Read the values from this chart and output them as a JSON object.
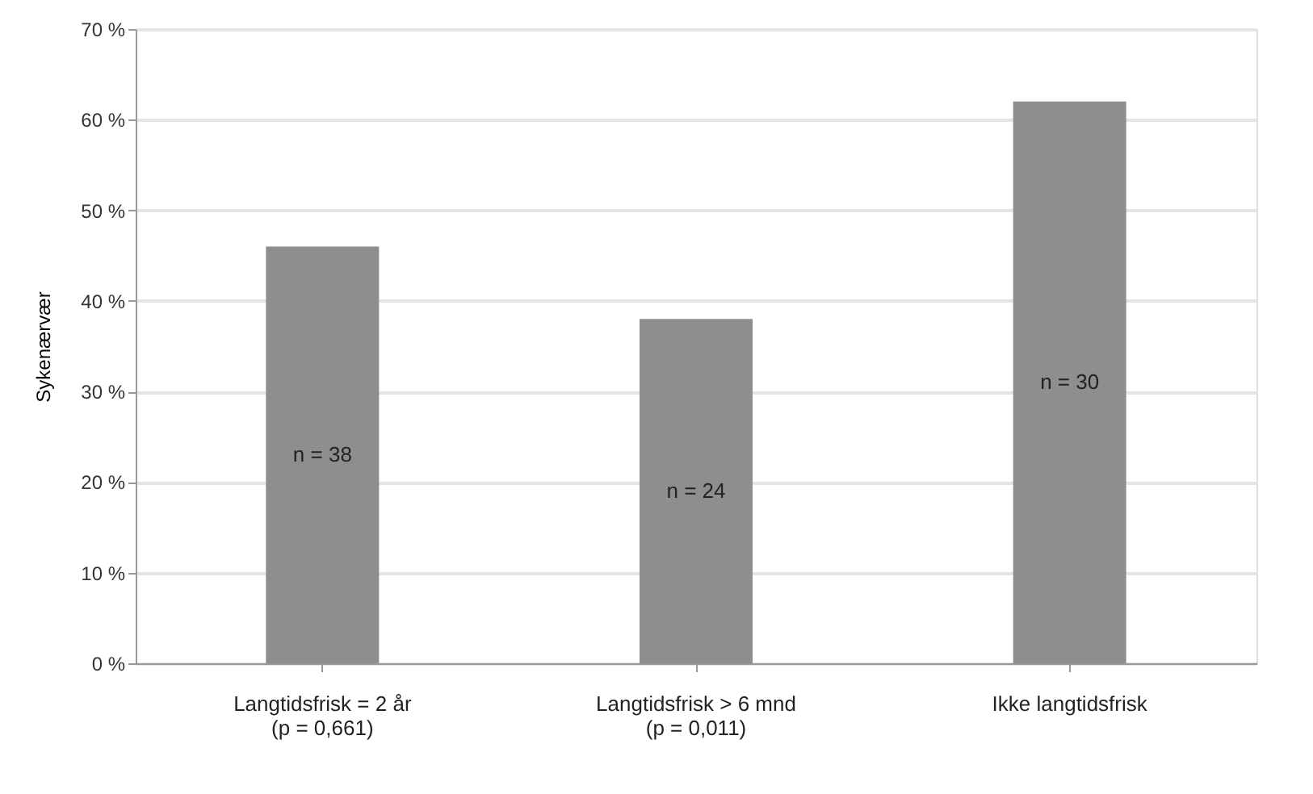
{
  "chart_data": {
    "type": "bar",
    "ylabel": "Sykenærvær",
    "categories": [
      "Langtidsfrisk = 2 år\n(p = 0,661)",
      "Langtidsfrisk > 6 mnd\n(p = 0,011)",
      "Ikke langtidsfrisk"
    ],
    "values": [
      46,
      38,
      62
    ],
    "color": "#8e8e8e",
    "ylim": [
      0,
      70
    ],
    "yticks": [
      {
        "value": 0,
        "label": "0 %"
      },
      {
        "value": 10,
        "label": "10 %"
      },
      {
        "value": 20,
        "label": "20 %"
      },
      {
        "value": 30,
        "label": "30 %"
      },
      {
        "value": 40,
        "label": "40 %"
      },
      {
        "value": 50,
        "label": "50 %"
      },
      {
        "value": 60,
        "label": "60 %"
      },
      {
        "value": 70,
        "label": "70 %"
      }
    ],
    "grid": "y",
    "annotations": [
      "n = 38",
      "n = 24",
      "n = 30"
    ]
  }
}
